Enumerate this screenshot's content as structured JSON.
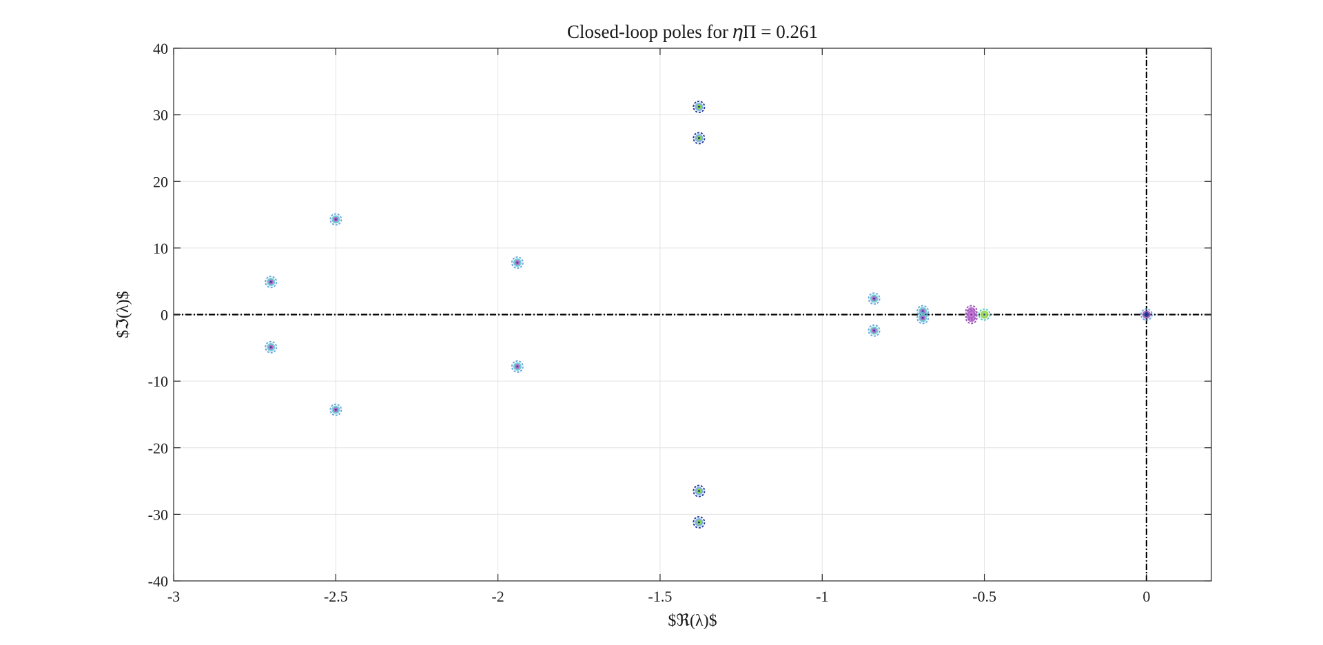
{
  "chart_data": {
    "type": "scatter",
    "title": "Closed-loop poles for 𝜂Π = 0.261",
    "xlabel": "$ℜ(λ)$",
    "ylabel": "$ℑ(λ)$",
    "xlim": [
      -3,
      0.2
    ],
    "ylim": [
      -40,
      40
    ],
    "xticks": [
      -3,
      -2.5,
      -2,
      -1.5,
      -1,
      -0.5,
      0
    ],
    "yticks": [
      -40,
      -30,
      -20,
      -10,
      0,
      10,
      20,
      30,
      40
    ],
    "xtick_labels": [
      "-3",
      "-2.5",
      "-2",
      "-1.5",
      "-1",
      "-0.5",
      "0"
    ],
    "ytick_labels": [
      "-40",
      "-30",
      "-20",
      "-10",
      "0",
      "10",
      "20",
      "30",
      "40"
    ],
    "grid": true,
    "legend": "none",
    "reference_lines": {
      "x": 0,
      "y": 0,
      "style": "dash-dot",
      "color": "#000000"
    },
    "colors": [
      "#6aa7e0",
      "#5ac7c9",
      "#b368c9",
      "#8bd14a",
      "#2b3f9e",
      "#9b59b6"
    ],
    "series": [
      {
        "points": [
          {
            "x": -1.38,
            "y": 31.2
          },
          {
            "x": -1.38,
            "y": 26.5
          },
          {
            "x": -1.38,
            "y": -26.5
          },
          {
            "x": -1.38,
            "y": -31.2
          }
        ],
        "style": "green-core"
      },
      {
        "points": [
          {
            "x": -2.5,
            "y": 14.3
          },
          {
            "x": -2.5,
            "y": -14.3
          },
          {
            "x": -2.7,
            "y": 4.9
          },
          {
            "x": -2.7,
            "y": -4.9
          },
          {
            "x": -1.94,
            "y": 7.8
          },
          {
            "x": -1.94,
            "y": -7.8
          },
          {
            "x": -0.84,
            "y": 2.4
          },
          {
            "x": -0.84,
            "y": -2.4
          },
          {
            "x": -0.69,
            "y": 0.5
          },
          {
            "x": -0.69,
            "y": -0.5
          }
        ],
        "style": "cyan-core"
      },
      {
        "points": [
          {
            "x": -0.54,
            "y": 0.5
          },
          {
            "x": -0.54,
            "y": -0.5
          },
          {
            "x": -0.54,
            "y": 0
          }
        ],
        "style": "purple-core"
      },
      {
        "points": [
          {
            "x": -0.5,
            "y": 0
          }
        ],
        "style": "lime-core"
      },
      {
        "points": [
          {
            "x": 0,
            "y": 0
          }
        ],
        "style": "dark-core"
      }
    ]
  }
}
